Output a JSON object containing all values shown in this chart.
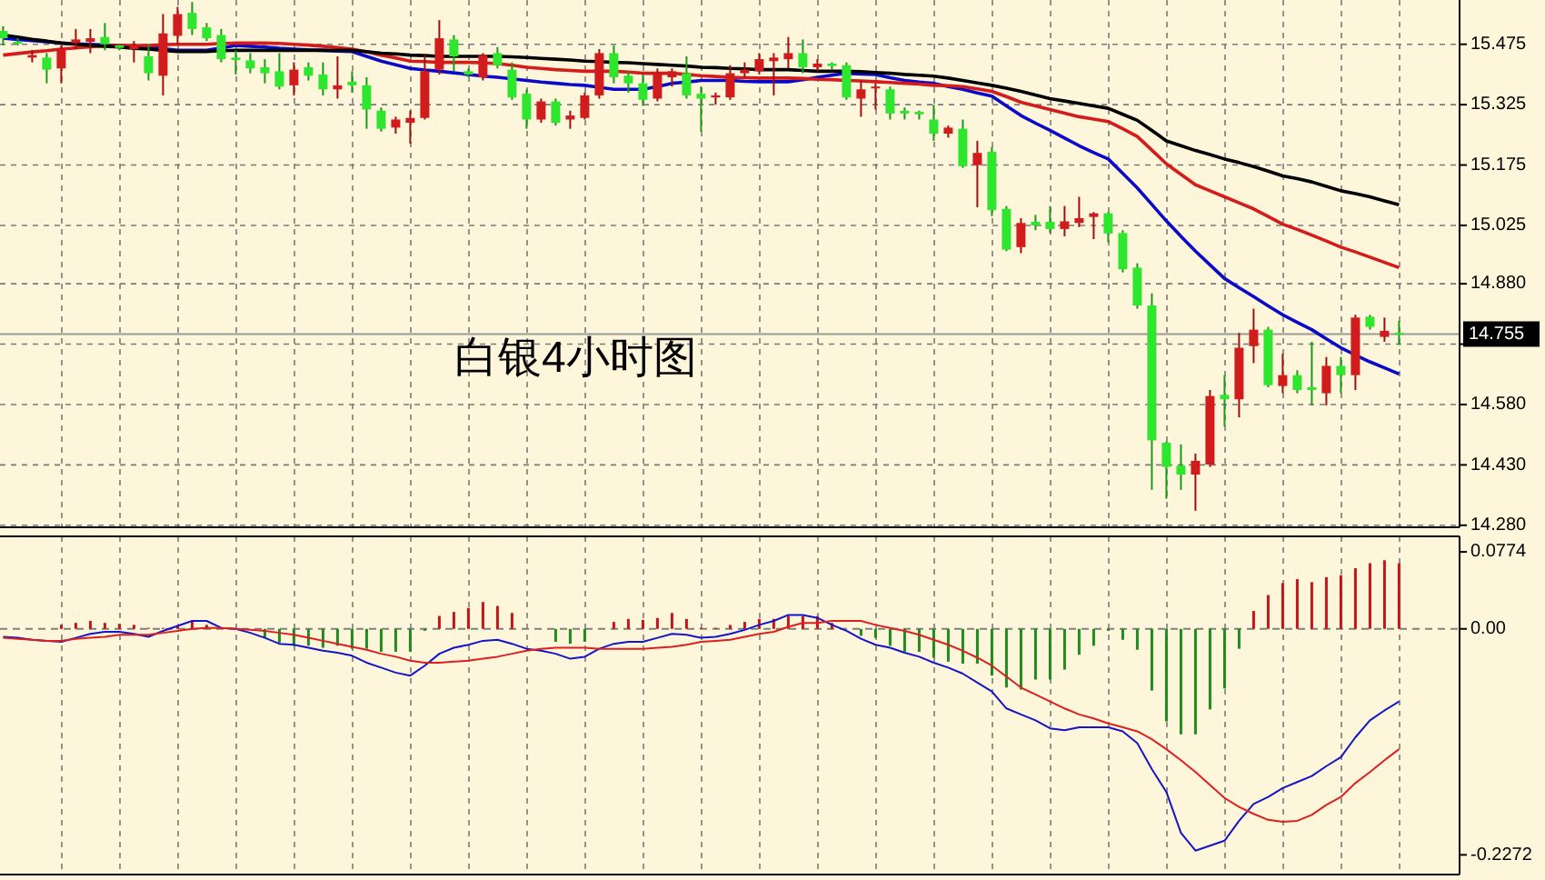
{
  "chart_data": [
    {
      "type": "candlestick",
      "title": "白银4小时图",
      "tick_labels": "y",
      "grid": true,
      "categories": [
        null,
        null,
        null,
        null,
        null,
        null,
        null,
        null,
        null,
        null,
        null,
        null,
        null,
        null,
        null,
        null,
        null,
        null,
        null,
        null,
        null,
        null,
        null,
        null,
        null,
        null,
        null,
        null,
        null,
        null,
        null,
        null,
        null,
        null,
        null,
        null,
        null,
        null,
        null,
        null,
        null,
        null,
        null,
        null,
        null,
        null,
        null,
        null,
        null,
        null,
        null,
        null,
        null,
        null,
        null,
        null,
        null,
        null,
        null,
        null,
        null,
        null,
        null,
        null,
        null,
        null,
        null,
        null,
        null,
        null,
        null,
        null,
        null,
        null,
        null,
        null,
        null,
        null,
        null,
        null,
        null,
        null,
        null,
        null,
        null,
        null,
        null,
        null,
        null,
        null,
        null,
        null,
        null,
        null,
        null,
        null,
        null
      ],
      "ylim": [
        14.275,
        15.585
      ],
      "yticks": [
        15.475,
        15.325,
        15.175,
        15.025,
        {
          "value": 14.88,
          "label": "14.880"
        },
        {
          "value": 14.73,
          "label": null
        },
        {
          "value": 14.58,
          "label": "14.580"
        },
        {
          "value": 14.43,
          "label": "14.430"
        },
        {
          "value": 14.28,
          "label": "14.280"
        }
      ],
      "ref_lines": [
        {
          "axis": "y",
          "value": 14.755,
          "label": "14.755",
          "color": "#9a9a9a"
        }
      ],
      "ohlc": [
        [
          15.508,
          15.52,
          15.472,
          15.49
        ],
        [
          15.481,
          15.49,
          15.472,
          15.478
        ],
        [
          15.442,
          15.46,
          15.43,
          15.448
        ],
        [
          15.442,
          15.453,
          15.378,
          15.412
        ],
        [
          15.415,
          15.472,
          15.378,
          15.463
        ],
        [
          15.478,
          15.513,
          15.463,
          15.487
        ],
        [
          15.481,
          15.513,
          15.453,
          15.49
        ],
        [
          15.493,
          15.528,
          15.46,
          15.475
        ],
        [
          15.472,
          15.475,
          15.46,
          15.466
        ],
        [
          15.463,
          15.483,
          15.43,
          15.472
        ],
        [
          15.445,
          15.475,
          15.385,
          15.403
        ],
        [
          15.397,
          15.55,
          15.348,
          15.502
        ],
        [
          15.496,
          15.568,
          15.475,
          15.55
        ],
        [
          15.553,
          15.58,
          15.498,
          15.513
        ],
        [
          15.517,
          15.528,
          15.483,
          15.49
        ],
        [
          15.498,
          15.513,
          15.43,
          15.438
        ],
        [
          15.442,
          15.46,
          15.4,
          15.436
        ],
        [
          15.435,
          15.453,
          15.403,
          15.415
        ],
        [
          15.418,
          15.438,
          15.378,
          15.403
        ],
        [
          15.408,
          15.453,
          15.363,
          15.37
        ],
        [
          15.373,
          15.43,
          15.348,
          15.412
        ],
        [
          15.418,
          15.43,
          15.385,
          15.397
        ],
        [
          15.4,
          15.43,
          15.348,
          15.363
        ],
        [
          15.363,
          15.445,
          15.34,
          15.373
        ],
        [
          15.382,
          15.408,
          15.355,
          15.373
        ],
        [
          15.373,
          15.393,
          15.265,
          15.313
        ],
        [
          15.31,
          15.318,
          15.258,
          15.265
        ],
        [
          15.268,
          15.295,
          15.253,
          15.288
        ],
        [
          15.28,
          15.31,
          15.228,
          15.292
        ],
        [
          15.292,
          15.448,
          15.288,
          15.408
        ],
        [
          15.412,
          15.535,
          15.4,
          15.49
        ],
        [
          15.487,
          15.498,
          15.408,
          15.445
        ],
        [
          15.408,
          15.415,
          15.393,
          15.4
        ],
        [
          15.393,
          15.453,
          15.385,
          15.448
        ],
        [
          15.453,
          15.468,
          15.415,
          15.423
        ],
        [
          15.412,
          15.43,
          15.337,
          15.343
        ],
        [
          15.352,
          15.363,
          15.265,
          15.288
        ],
        [
          15.288,
          15.34,
          15.28,
          15.333
        ],
        [
          15.333,
          15.34,
          15.273,
          15.28
        ],
        [
          15.288,
          15.31,
          15.265,
          15.298
        ],
        [
          15.292,
          15.355,
          15.288,
          15.348
        ],
        [
          15.348,
          15.463,
          15.34,
          15.453
        ],
        [
          15.453,
          15.472,
          15.378,
          15.393
        ],
        [
          15.397,
          15.408,
          15.355,
          15.378
        ],
        [
          15.378,
          15.4,
          15.322,
          15.337
        ],
        [
          15.34,
          15.415,
          15.333,
          15.403
        ],
        [
          15.393,
          15.415,
          15.37,
          15.408
        ],
        [
          15.403,
          15.445,
          15.34,
          15.348
        ],
        [
          15.352,
          15.37,
          15.258,
          15.34
        ],
        [
          15.343,
          15.355,
          15.325,
          15.348
        ],
        [
          15.343,
          15.423,
          15.337,
          15.403
        ],
        [
          15.403,
          15.43,
          15.393,
          15.412
        ],
        [
          15.408,
          15.453,
          15.4,
          15.438
        ],
        [
          15.433,
          15.453,
          15.348,
          15.442
        ],
        [
          15.438,
          15.493,
          15.415,
          15.453
        ],
        [
          15.453,
          15.487,
          15.403,
          15.418
        ],
        [
          15.418,
          15.438,
          15.408,
          15.427
        ],
        [
          15.427,
          15.43,
          15.412,
          15.421
        ],
        [
          15.423,
          15.43,
          15.337,
          15.343
        ],
        [
          15.34,
          15.385,
          15.295,
          15.363
        ],
        [
          15.367,
          15.378,
          15.313,
          15.37
        ],
        [
          15.363,
          15.37,
          15.288,
          15.303
        ],
        [
          15.31,
          15.318,
          15.288,
          15.303
        ],
        [
          15.307,
          15.31,
          15.288,
          15.301
        ],
        [
          15.288,
          15.325,
          15.235,
          15.253
        ],
        [
          15.253,
          15.273,
          15.243,
          15.268
        ],
        [
          15.265,
          15.288,
          15.168,
          15.172
        ],
        [
          15.175,
          15.235,
          15.07,
          15.205
        ],
        [
          15.208,
          15.22,
          15.048,
          15.063
        ],
        [
          15.066,
          15.073,
          14.961,
          14.965
        ],
        [
          14.971,
          15.043,
          14.956,
          15.031
        ],
        [
          15.034,
          15.051,
          15.013,
          15.025
        ],
        [
          15.034,
          15.073,
          15.006,
          15.016
        ],
        [
          15.016,
          15.073,
          14.998,
          15.035
        ],
        [
          15.031,
          15.096,
          15.021,
          15.043
        ],
        [
          15.046,
          15.058,
          14.991,
          15.055
        ],
        [
          15.055,
          15.058,
          14.983,
          15.005
        ],
        [
          15.006,
          15.013,
          14.908,
          14.916
        ],
        [
          14.92,
          14.931,
          14.818,
          14.826
        ],
        [
          14.826,
          14.856,
          14.368,
          14.491
        ],
        [
          14.485,
          14.488,
          14.346,
          14.425
        ],
        [
          14.428,
          14.481,
          14.368,
          14.406
        ],
        [
          14.406,
          14.458,
          14.316,
          14.44
        ],
        [
          14.431,
          14.616,
          14.425,
          14.601
        ],
        [
          14.604,
          14.653,
          14.526,
          14.593
        ],
        [
          14.593,
          14.758,
          14.548,
          14.721
        ],
        [
          14.725,
          14.818,
          14.683,
          14.766
        ],
        [
          14.766,
          14.773,
          14.623,
          14.628
        ],
        [
          14.626,
          14.706,
          14.608,
          14.653
        ],
        [
          14.653,
          14.665,
          14.608,
          14.616
        ],
        [
          14.623,
          14.736,
          14.578,
          14.616
        ],
        [
          14.608,
          14.698,
          14.578,
          14.676
        ],
        [
          14.676,
          14.698,
          14.608,
          14.653
        ],
        [
          14.653,
          14.803,
          14.616,
          14.796
        ],
        [
          14.798,
          14.803,
          14.766,
          14.773
        ],
        [
          14.748,
          14.796,
          14.736,
          14.763
        ],
        [
          14.758,
          14.788,
          14.728,
          14.755
        ]
      ],
      "series": [
        {
          "type": "line",
          "color": "#0a0ac8",
          "values": [
            15.49,
            15.487,
            15.484,
            15.481,
            15.478,
            15.476,
            15.475,
            15.473,
            15.472,
            15.47,
            15.468,
            15.464,
            15.46,
            15.46,
            15.46,
            15.466,
            15.472,
            15.47,
            15.468,
            15.465,
            15.463,
            15.461,
            15.46,
            15.458,
            15.457,
            15.445,
            15.433,
            15.424,
            15.415,
            15.411,
            15.408,
            15.404,
            15.4,
            15.396,
            15.393,
            15.389,
            15.385,
            15.381,
            15.378,
            15.375,
            15.373,
            15.368,
            15.363,
            15.363,
            15.363,
            15.37,
            15.378,
            15.381,
            15.385,
            15.385,
            15.385,
            15.383,
            15.382,
            15.382,
            15.382,
            15.387,
            15.393,
            15.398,
            15.403,
            15.401,
            15.4,
            15.392,
            15.385,
            15.381,
            15.378,
            15.37,
            15.363,
            15.354,
            15.346,
            15.322,
            15.298,
            15.279,
            15.261,
            15.242,
            15.223,
            15.206,
            15.19,
            15.154,
            15.118,
            15.077,
            15.036,
            14.998,
            14.961,
            14.927,
            14.893,
            14.87,
            14.848,
            14.825,
            14.803,
            14.784,
            14.766,
            14.743,
            14.721,
            14.703,
            14.686,
            14.671,
            14.656
          ]
        },
        {
          "type": "line",
          "color": "#d41c1c",
          "values": [
            15.448,
            15.452,
            15.456,
            15.459,
            15.463,
            15.466,
            15.469,
            15.471,
            15.472,
            15.472,
            15.472,
            15.474,
            15.475,
            15.475,
            15.475,
            15.477,
            15.478,
            15.478,
            15.478,
            15.477,
            15.475,
            15.473,
            15.47,
            15.467,
            15.463,
            15.456,
            15.448,
            15.441,
            15.433,
            15.432,
            15.43,
            15.43,
            15.43,
            15.429,
            15.427,
            15.423,
            15.418,
            15.415,
            15.412,
            15.41,
            15.408,
            15.408,
            15.408,
            15.406,
            15.403,
            15.403,
            15.403,
            15.4,
            15.397,
            15.395,
            15.393,
            15.392,
            15.391,
            15.391,
            15.391,
            15.39,
            15.388,
            15.387,
            15.385,
            15.384,
            15.382,
            15.38,
            15.378,
            15.376,
            15.373,
            15.372,
            15.37,
            15.364,
            15.358,
            15.345,
            15.331,
            15.322,
            15.313,
            15.304,
            15.295,
            15.289,
            15.283,
            15.265,
            15.246,
            15.212,
            15.178,
            15.152,
            15.126,
            15.111,
            15.096,
            15.081,
            15.066,
            15.047,
            15.028,
            15.015,
            15.001,
            14.986,
            14.971,
            14.959,
            14.946,
            14.933,
            14.92
          ]
        },
        {
          "type": "line",
          "color": "#000000",
          "values": [
            15.498,
            15.493,
            15.487,
            15.483,
            15.478,
            15.475,
            15.472,
            15.47,
            15.468,
            15.465,
            15.463,
            15.46,
            15.457,
            15.457,
            15.457,
            15.459,
            15.46,
            15.46,
            15.46,
            15.46,
            15.46,
            15.46,
            15.46,
            15.46,
            15.46,
            15.457,
            15.453,
            15.451,
            15.448,
            15.447,
            15.445,
            15.445,
            15.445,
            15.445,
            15.445,
            15.444,
            15.442,
            15.44,
            15.438,
            15.436,
            15.433,
            15.432,
            15.43,
            15.429,
            15.427,
            15.425,
            15.423,
            15.421,
            15.418,
            15.417,
            15.415,
            15.414,
            15.412,
            15.412,
            15.412,
            15.41,
            15.408,
            15.408,
            15.408,
            15.407,
            15.405,
            15.403,
            15.4,
            15.398,
            15.396,
            15.391,
            15.385,
            15.379,
            15.373,
            15.366,
            15.358,
            15.349,
            15.34,
            15.334,
            15.328,
            15.322,
            15.316,
            15.301,
            15.286,
            15.261,
            15.235,
            15.223,
            15.211,
            15.201,
            15.19,
            15.181,
            15.171,
            15.16,
            15.148,
            15.141,
            15.133,
            15.122,
            15.111,
            15.104,
            15.096,
            15.086,
            15.076
          ]
        }
      ]
    },
    {
      "type": "bar",
      "tick_labels": "y",
      "grid": "x",
      "categories": [
        null,
        null,
        null,
        null,
        null,
        null,
        null,
        null,
        null,
        null,
        null,
        null,
        null,
        null,
        null,
        null,
        null,
        null,
        null,
        null,
        null,
        null,
        null,
        null,
        null,
        null,
        null,
        null,
        null,
        null,
        null,
        null,
        null,
        null,
        null,
        null,
        null,
        null,
        null,
        null,
        null,
        null,
        null,
        null,
        null,
        null,
        null,
        null,
        null,
        null,
        null,
        null,
        null,
        null,
        null,
        null,
        null,
        null,
        null,
        null,
        null,
        null,
        null,
        null,
        null,
        null,
        null,
        null,
        null,
        null,
        null,
        null,
        null,
        null,
        null,
        null,
        null,
        null,
        null,
        null,
        null,
        null,
        null,
        null,
        null,
        null,
        null,
        null,
        null,
        null,
        null,
        null,
        null,
        null,
        null,
        null,
        null
      ],
      "ylim": [
        -0.247,
        0.093
      ],
      "yticks": [
        0.0774,
        {
          "value": 0,
          "label": "0.00"
        },
        -0.2272
      ],
      "ref_lines": [
        {
          "axis": "y",
          "value": 0,
          "line_style": "dashed",
          "color": "#808080"
        }
      ],
      "series": [
        {
          "type": "bar",
          "color": "#c01818",
          "values": [
            null,
            null,
            null,
            null,
            0.004,
            0.006,
            0.008,
            0.006,
            0.005,
            0.004,
            0.001,
            0.001,
            0.003,
            0.008,
            0.004,
            null,
            null,
            null,
            null,
            null,
            null,
            null,
            null,
            null,
            null,
            null,
            null,
            null,
            null,
            null,
            0.013,
            0.017,
            0.021,
            0.027,
            0.023,
            0.016,
            null,
            null,
            null,
            null,
            null,
            null,
            0.007,
            0.01,
            0.009,
            0.011,
            0.016,
            0.01,
            0.001,
            0.001,
            0.004,
            0.007,
            0.01,
            0.01,
            0.013,
            0.013,
            0.013,
            0.006,
            null,
            null,
            null,
            null,
            null,
            null,
            null,
            null,
            null,
            null,
            null,
            null,
            null,
            null,
            null,
            null,
            null,
            null,
            null,
            null,
            null,
            null,
            null,
            null,
            null,
            null,
            null,
            null,
            0.018,
            0.034,
            0.046,
            0.05,
            0.047,
            0.052,
            0.054,
            0.061,
            0.066,
            0.069,
            0.066
          ]
        },
        {
          "type": "bar",
          "color": "#1f8a1f",
          "values": [
            null,
            null,
            null,
            null,
            null,
            null,
            null,
            null,
            null,
            null,
            null,
            null,
            null,
            null,
            null,
            null,
            null,
            null,
            -0.009,
            -0.014,
            -0.017,
            -0.017,
            -0.019,
            -0.017,
            -0.02,
            -0.02,
            -0.023,
            -0.023,
            -0.023,
            -0.002,
            null,
            null,
            null,
            null,
            null,
            null,
            null,
            null,
            -0.013,
            -0.015,
            -0.013,
            null,
            null,
            null,
            null,
            null,
            null,
            null,
            null,
            null,
            null,
            null,
            null,
            null,
            null,
            null,
            null,
            null,
            null,
            -0.007,
            -0.009,
            -0.017,
            -0.023,
            -0.023,
            -0.029,
            -0.033,
            -0.035,
            -0.035,
            -0.047,
            -0.059,
            -0.061,
            -0.051,
            -0.051,
            -0.041,
            -0.026,
            -0.017,
            -0.002,
            -0.011,
            -0.021,
            -0.062,
            -0.093,
            -0.106,
            -0.106,
            -0.081,
            -0.06,
            -0.02,
            null,
            null,
            null,
            null,
            null,
            null,
            null,
            null,
            null,
            null,
            null
          ]
        },
        {
          "type": "line",
          "color": "#1414c8",
          "values": [
            -0.008,
            -0.009,
            -0.011,
            -0.012,
            -0.013,
            -0.009,
            -0.005,
            -0.003,
            -0.003,
            -0.005,
            -0.008,
            -0.002,
            0.003,
            0.008,
            0.008,
            0.001,
            0,
            -0.004,
            -0.009,
            -0.015,
            -0.016,
            -0.019,
            -0.022,
            -0.024,
            -0.027,
            -0.034,
            -0.039,
            -0.044,
            -0.047,
            -0.037,
            -0.025,
            -0.019,
            -0.016,
            -0.012,
            -0.011,
            -0.015,
            -0.02,
            -0.022,
            -0.025,
            -0.03,
            -0.028,
            -0.02,
            -0.015,
            -0.013,
            -0.013,
            -0.009,
            -0.005,
            -0.006,
            -0.009,
            -0.008,
            -0.005,
            -0.001,
            0.004,
            0.008,
            0.014,
            0.014,
            0.011,
            0.004,
            -0.002,
            -0.01,
            -0.016,
            -0.019,
            -0.024,
            -0.028,
            -0.034,
            -0.039,
            -0.045,
            -0.054,
            -0.063,
            -0.08,
            -0.086,
            -0.092,
            -0.1,
            -0.102,
            -0.099,
            -0.099,
            -0.099,
            -0.103,
            -0.115,
            -0.141,
            -0.164,
            -0.205,
            -0.223,
            -0.218,
            -0.213,
            -0.193,
            -0.176,
            -0.169,
            -0.16,
            -0.154,
            -0.148,
            -0.138,
            -0.129,
            -0.109,
            -0.092,
            -0.082,
            -0.073
          ]
        },
        {
          "type": "line",
          "color": "#dc2020",
          "values": [
            -0.009,
            -0.01,
            -0.011,
            -0.012,
            -0.012,
            -0.01,
            -0.009,
            -0.008,
            -0.006,
            -0.006,
            -0.006,
            -0.004,
            -0.002,
            0,
            0.001,
            0.001,
            0,
            -0.001,
            -0.002,
            -0.004,
            -0.006,
            -0.009,
            -0.012,
            -0.015,
            -0.018,
            -0.021,
            -0.025,
            -0.028,
            -0.032,
            -0.034,
            -0.034,
            -0.033,
            -0.032,
            -0.03,
            -0.028,
            -0.025,
            -0.022,
            -0.02,
            -0.019,
            -0.019,
            -0.019,
            -0.02,
            -0.02,
            -0.02,
            -0.02,
            -0.019,
            -0.018,
            -0.016,
            -0.013,
            -0.012,
            -0.011,
            -0.008,
            -0.005,
            -0.003,
            0.002,
            0.006,
            0.006,
            0.008,
            0.008,
            0.008,
            0.004,
            0.001,
            -0.002,
            -0.006,
            -0.011,
            -0.016,
            -0.022,
            -0.029,
            -0.037,
            -0.048,
            -0.059,
            -0.066,
            -0.073,
            -0.08,
            -0.086,
            -0.09,
            -0.095,
            -0.099,
            -0.103,
            -0.111,
            -0.121,
            -0.132,
            -0.144,
            -0.157,
            -0.17,
            -0.179,
            -0.186,
            -0.192,
            -0.194,
            -0.193,
            -0.187,
            -0.177,
            -0.169,
            -0.155,
            -0.144,
            -0.132,
            -0.121
          ]
        }
      ]
    }
  ]
}
